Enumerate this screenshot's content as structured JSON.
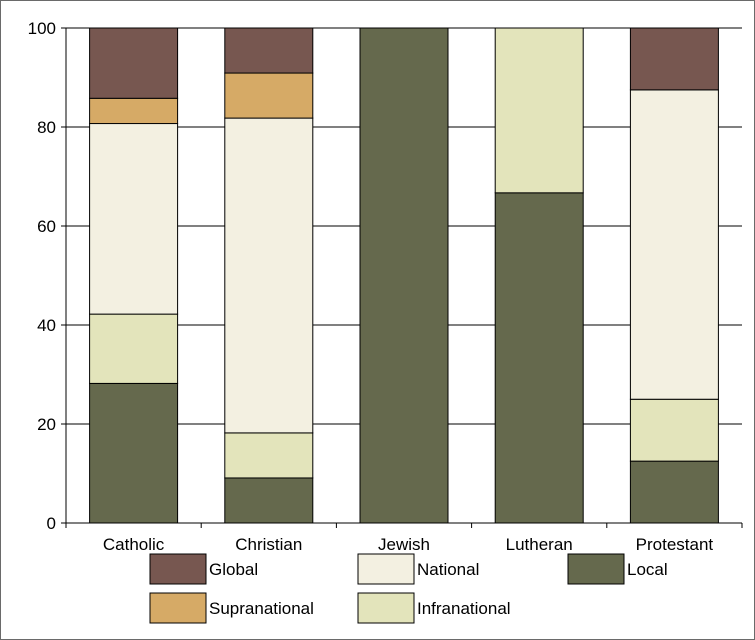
{
  "chart_data": {
    "type": "bar",
    "stacked": true,
    "categories": [
      "Catholic",
      "Christian",
      "Jewish",
      "Lutheran",
      "Protestant"
    ],
    "series": [
      {
        "name": "Local",
        "color": "#65694d",
        "values": [
          28.2,
          9.1,
          100,
          66.7,
          12.5
        ]
      },
      {
        "name": "Infranational",
        "color": "#e3e4bb",
        "values": [
          14.0,
          9.1,
          0,
          33.3,
          12.5
        ]
      },
      {
        "name": "National",
        "color": "#f3f0e1",
        "values": [
          38.5,
          63.6,
          0,
          0,
          62.5
        ]
      },
      {
        "name": "Supranational",
        "color": "#d6aa66",
        "values": [
          5.1,
          9.1,
          0,
          0,
          0
        ]
      },
      {
        "name": "Global",
        "color": "#775750",
        "values": [
          14.2,
          9.1,
          0,
          0,
          12.5
        ]
      }
    ],
    "ylim": [
      0,
      100
    ],
    "yticks": [
      "0",
      "20",
      "40",
      "60",
      "80",
      "100"
    ],
    "grid": true,
    "legend": {
      "placement": "bottom",
      "order": [
        "Global",
        "National",
        "Local",
        "Supranational",
        "Infranational"
      ]
    }
  }
}
